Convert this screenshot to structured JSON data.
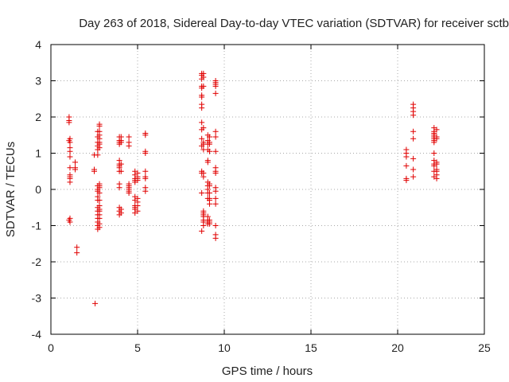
{
  "chart_data": {
    "type": "scatter",
    "title": "Day 263 of 2018, Sidereal Day-to-day VTEC variation (SDTVAR) for receiver sctb",
    "xlabel": "GPS time / hours",
    "ylabel": "SDTVAR / TECUs",
    "xlim": [
      0,
      25
    ],
    "ylim": [
      -4,
      4
    ],
    "xticks": [
      0,
      5,
      10,
      15,
      20,
      25
    ],
    "yticks": [
      -4,
      -3,
      -2,
      -1,
      0,
      1,
      2,
      3,
      4
    ],
    "grid": true,
    "marker": "+",
    "color": "#e00000",
    "series": [
      {
        "name": "SDTVAR",
        "x": [
          1.05,
          1.05,
          1.05,
          1.05,
          1.05,
          1.1,
          1.1,
          1.1,
          1.1,
          1.1,
          1.1,
          1.1,
          1.1,
          1.1,
          1.1,
          1.1,
          1.1,
          1.4,
          1.4,
          1.4,
          1.5,
          1.5,
          2.5,
          2.5,
          2.5,
          2.55,
          2.7,
          2.7,
          2.7,
          2.7,
          2.7,
          2.7,
          2.7,
          2.7,
          2.7,
          2.7,
          2.7,
          2.7,
          2.7,
          2.7,
          2.7,
          2.7,
          2.7,
          2.7,
          2.8,
          2.8,
          2.8,
          2.8,
          2.8,
          2.8,
          2.8,
          2.8,
          2.8,
          2.8,
          2.8,
          2.8,
          2.8,
          2.8,
          2.8,
          2.8,
          2.8,
          2.8,
          2.8,
          2.8,
          3.95,
          3.95,
          3.95,
          3.95,
          3.95,
          3.95,
          3.95,
          3.95,
          3.95,
          3.95,
          3.95,
          3.95,
          3.95,
          3.95,
          4.05,
          4.05,
          4.05,
          4.05,
          4.05,
          4.05,
          4.05,
          4.5,
          4.5,
          4.5,
          4.5,
          4.5,
          4.5,
          4.5,
          4.5,
          4.5,
          4.85,
          4.85,
          4.85,
          4.85,
          4.85,
          4.85,
          4.85,
          4.85,
          4.85,
          4.85,
          4.85,
          5.0,
          5.0,
          5.0,
          5.0,
          5.0,
          5.0,
          5.0,
          5.0,
          5.45,
          5.45,
          5.45,
          5.45,
          5.45,
          5.45,
          5.45,
          5.45,
          5.45,
          8.7,
          8.7,
          8.7,
          8.7,
          8.7,
          8.7,
          8.7,
          8.7,
          8.7,
          8.7,
          8.7,
          8.7,
          8.7,
          8.7,
          8.7,
          8.7,
          8.7,
          8.8,
          8.8,
          8.8,
          8.8,
          8.8,
          8.8,
          8.8,
          8.8,
          8.8,
          8.8,
          8.8,
          8.8,
          8.8,
          8.8,
          8.8,
          8.8,
          9.05,
          9.05,
          9.05,
          9.05,
          9.05,
          9.05,
          9.05,
          9.05,
          9.05,
          9.05,
          9.05,
          9.05,
          9.05,
          9.05,
          9.05,
          9.15,
          9.15,
          9.15,
          9.15,
          9.15,
          9.15,
          9.15,
          9.15,
          9.15,
          9.15,
          9.15,
          9.15,
          9.15,
          9.5,
          9.5,
          9.5,
          9.5,
          9.5,
          9.5,
          9.5,
          9.5,
          9.5,
          9.5,
          9.5,
          9.5,
          9.5,
          9.5,
          9.5,
          9.5,
          9.5,
          9.5,
          20.5,
          20.5,
          20.5,
          20.5,
          20.5,
          20.5,
          20.9,
          20.9,
          20.9,
          20.9,
          20.9,
          20.9,
          20.9,
          20.9,
          20.9,
          22.1,
          22.1,
          22.1,
          22.1,
          22.1,
          22.1,
          22.1,
          22.1,
          22.1,
          22.1,
          22.1,
          22.1,
          22.1,
          22.1,
          22.25,
          22.25,
          22.25,
          22.25,
          22.25,
          22.25,
          22.25,
          22.25,
          22.25
        ],
        "y": [
          2.0,
          1.9,
          1.85,
          1.35,
          -0.85,
          1.4,
          1.3,
          1.15,
          1.05,
          0.9,
          0.6,
          0.4,
          0.35,
          0.3,
          0.2,
          -0.8,
          -0.9,
          0.75,
          0.6,
          0.55,
          -1.6,
          -1.75,
          0.95,
          0.55,
          0.5,
          -3.15,
          1.6,
          1.45,
          1.3,
          1.2,
          1.1,
          0.95,
          0.1,
          0.0,
          -0.05,
          -0.2,
          -0.3,
          -0.5,
          -0.6,
          -0.7,
          -0.8,
          -0.9,
          -1.0,
          -1.1,
          1.8,
          1.75,
          1.6,
          1.5,
          1.4,
          1.3,
          1.25,
          1.15,
          0.15,
          0.1,
          0.05,
          -0.1,
          -0.3,
          -0.45,
          -0.55,
          -0.6,
          -0.7,
          -0.8,
          -0.95,
          -1.05,
          1.45,
          1.35,
          1.3,
          1.25,
          0.8,
          0.7,
          0.65,
          0.6,
          0.5,
          0.15,
          0.05,
          -0.5,
          -0.6,
          -0.7,
          1.45,
          1.35,
          1.3,
          0.7,
          0.5,
          -0.55,
          -0.65,
          1.45,
          1.3,
          1.2,
          0.15,
          0.1,
          0.05,
          0.0,
          -0.05,
          -0.1,
          0.5,
          0.4,
          0.3,
          0.25,
          0.2,
          -0.2,
          -0.3,
          -0.45,
          -0.5,
          -0.55,
          -0.65,
          0.45,
          0.35,
          0.3,
          0.25,
          -0.25,
          -0.35,
          -0.45,
          -0.6,
          1.55,
          1.5,
          1.05,
          1.0,
          0.5,
          0.35,
          0.3,
          0.05,
          -0.05,
          3.2,
          3.15,
          3.05,
          2.85,
          2.8,
          2.6,
          2.55,
          2.35,
          2.25,
          1.85,
          1.65,
          1.4,
          1.2,
          0.5,
          0.45,
          -0.1,
          -1.15,
          3.2,
          3.1,
          2.85,
          1.7,
          1.3,
          1.25,
          1.1,
          0.45,
          0.35,
          -0.6,
          -0.65,
          -0.7,
          -0.75,
          -0.85,
          -0.9,
          -1.0,
          1.5,
          1.35,
          1.25,
          1.1,
          0.8,
          0.75,
          0.2,
          0.1,
          0.0,
          -0.1,
          -0.25,
          -0.75,
          -0.85,
          -0.9,
          -0.95,
          1.45,
          1.3,
          1.25,
          1.05,
          0.15,
          0.1,
          -0.1,
          -0.25,
          -0.3,
          -0.4,
          -0.85,
          -0.9,
          -0.95,
          3.0,
          2.95,
          2.9,
          2.85,
          2.65,
          1.6,
          1.45,
          1.05,
          0.6,
          0.5,
          0.45,
          0.05,
          -0.05,
          -0.25,
          -0.4,
          -1.0,
          -1.25,
          -1.35,
          1.1,
          1.0,
          0.9,
          0.65,
          0.3,
          0.25,
          2.35,
          2.25,
          2.15,
          2.05,
          1.6,
          1.4,
          0.85,
          0.55,
          0.35,
          1.7,
          1.6,
          1.55,
          1.5,
          1.45,
          1.4,
          1.35,
          1.3,
          1.0,
          0.8,
          0.7,
          0.65,
          0.5,
          0.35,
          1.65,
          1.45,
          1.4,
          0.75,
          0.7,
          0.55,
          0.5,
          0.4,
          0.3
        ]
      }
    ]
  }
}
